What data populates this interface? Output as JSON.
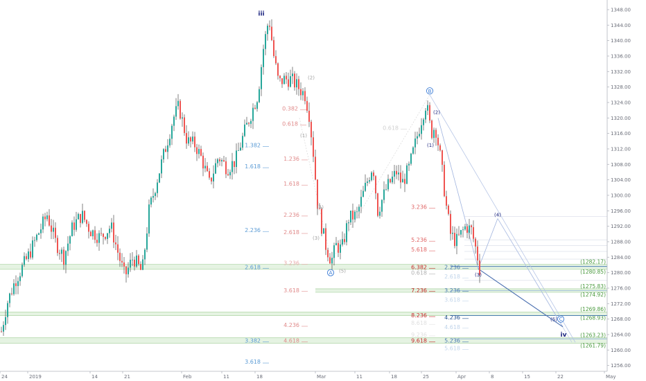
{
  "chart_data": {
    "type": "candlestick",
    "y_axis": {
      "ylim": [
        1254.5,
        1350.5
      ],
      "ticks": [
        1256,
        1260,
        1264,
        1268,
        1272,
        1276,
        1280,
        1284,
        1288,
        1292,
        1296,
        1300,
        1304,
        1308,
        1312,
        1316,
        1320,
        1324,
        1328,
        1332,
        1336,
        1340,
        1344,
        1348
      ],
      "labels": [
        "1256.00",
        "1260.00",
        "1264.00",
        "1268.00",
        "1272.00",
        "1276.00",
        "1280.00",
        "1284.00",
        "1288.00",
        "1292.00",
        "1296.00",
        "1300.00",
        "1304.00",
        "1308.00",
        "1312.00",
        "1316.00",
        "1320.00",
        "1324.00",
        "1328.00",
        "1332.00",
        "1336.00",
        "1340.00",
        "1344.00",
        "1348.00"
      ],
      "position": "right"
    },
    "x_axis": {
      "ticks": [
        {
          "label": "24",
          "t": 0
        },
        {
          "label": "2019",
          "t": 40
        },
        {
          "label": "14",
          "t": 130
        },
        {
          "label": "21",
          "t": 177
        },
        {
          "label": "Feb",
          "t": 262
        },
        {
          "label": "11",
          "t": 320
        },
        {
          "label": "18",
          "t": 368
        },
        {
          "label": "Mar",
          "t": 455
        },
        {
          "label": "11",
          "t": 512
        },
        {
          "label": "18",
          "t": 562
        },
        {
          "label": "25",
          "t": 608
        },
        {
          "label": "Apr",
          "t": 658
        },
        {
          "label": "8",
          "t": 706
        },
        {
          "label": "15",
          "t": 754
        },
        {
          "label": "22",
          "t": 802
        },
        {
          "label": "May",
          "t": 872
        }
      ]
    },
    "path_points": [
      [
        0,
        1263
      ],
      [
        10,
        1272
      ],
      [
        22,
        1278
      ],
      [
        40,
        1284
      ],
      [
        55,
        1290
      ],
      [
        68,
        1295
      ],
      [
        80,
        1288
      ],
      [
        92,
        1284
      ],
      [
        105,
        1292
      ],
      [
        118,
        1295
      ],
      [
        130,
        1291
      ],
      [
        145,
        1289
      ],
      [
        160,
        1292
      ],
      [
        172,
        1284
      ],
      [
        180,
        1279
      ],
      [
        192,
        1284
      ],
      [
        205,
        1280
      ],
      [
        215,
        1296
      ],
      [
        228,
        1305
      ],
      [
        240,
        1313
      ],
      [
        250,
        1320
      ],
      [
        258,
        1323
      ],
      [
        270,
        1314
      ],
      [
        282,
        1313
      ],
      [
        292,
        1309
      ],
      [
        302,
        1303
      ],
      [
        315,
        1310
      ],
      [
        328,
        1307
      ],
      [
        340,
        1309
      ],
      [
        352,
        1316
      ],
      [
        362,
        1321
      ],
      [
        372,
        1326
      ],
      [
        380,
        1338
      ],
      [
        388,
        1346
      ],
      [
        395,
        1336
      ],
      [
        402,
        1329
      ],
      [
        410,
        1330
      ],
      [
        420,
        1330
      ],
      [
        430,
        1328
      ],
      [
        440,
        1326
      ],
      [
        446,
        1321
      ],
      [
        452,
        1311
      ],
      [
        458,
        1298
      ],
      [
        464,
        1292
      ],
      [
        470,
        1287
      ],
      [
        478,
        1283
      ],
      [
        485,
        1287
      ],
      [
        493,
        1286
      ],
      [
        503,
        1294
      ],
      [
        515,
        1295
      ],
      [
        525,
        1301
      ],
      [
        538,
        1308
      ],
      [
        545,
        1296
      ],
      [
        558,
        1302
      ],
      [
        572,
        1306
      ],
      [
        580,
        1303
      ],
      [
        590,
        1307
      ],
      [
        600,
        1314
      ],
      [
        610,
        1321
      ],
      [
        615,
        1324
      ],
      [
        622,
        1316
      ],
      [
        628,
        1318
      ],
      [
        636,
        1309
      ],
      [
        644,
        1297
      ],
      [
        650,
        1290
      ],
      [
        658,
        1288
      ],
      [
        665,
        1290
      ],
      [
        672,
        1292
      ],
      [
        680,
        1291
      ],
      [
        688,
        1285
      ],
      [
        692,
        1281
      ]
    ],
    "support_zones": [
      {
        "top": 1282.17,
        "bottom": 1280.85,
        "label_top": "(1282.17)",
        "label_bottom": "(1280.85)"
      },
      {
        "top": 1275.83,
        "bottom": 1274.92,
        "label_top": "(1275.83)",
        "label_bottom": "(1274.92)"
      },
      {
        "top": 1269.86,
        "bottom": 1268.93,
        "label_top": "(1269.86)",
        "label_bottom": "(1268.93)"
      },
      {
        "top": 1263.23,
        "bottom": 1261.79,
        "label_top": "(1263.23)",
        "label_bottom": "(1261.79)"
      }
    ],
    "wave_labels": [
      {
        "text": "iii",
        "t": 377,
        "y": 1346.5,
        "style": "big"
      },
      {
        "text": "(2)",
        "t": 449,
        "y": 1330,
        "style": "grey"
      },
      {
        "text": "(1)",
        "t": 438,
        "y": 1315,
        "style": "grey"
      },
      {
        "text": "(3)",
        "t": 456,
        "y": 1288.5,
        "style": "grey"
      },
      {
        "text": "(4)",
        "t": 462,
        "y": 1296.5,
        "style": "grey"
      },
      {
        "text": "(5)",
        "t": 494,
        "y": 1280,
        "style": "grey"
      },
      {
        "text": "(2)",
        "t": 630,
        "y": 1321,
        "style": "dark"
      },
      {
        "text": "(1)",
        "t": 621,
        "y": 1312.5,
        "style": "dark"
      },
      {
        "text": "(3)",
        "t": 690,
        "y": 1279,
        "style": "dark"
      },
      {
        "text": "(4)",
        "t": 718,
        "y": 1294.5,
        "style": "dark"
      },
      {
        "text": "(5)",
        "t": 799,
        "y": 1267.5,
        "style": "dark"
      },
      {
        "text": "iv",
        "t": 813,
        "y": 1263.5,
        "style": "big"
      }
    ],
    "circle_labels": [
      {
        "text": "A",
        "t": 477,
        "y": 1280
      },
      {
        "text": "B",
        "t": 620,
        "y": 1327
      },
      {
        "text": "C",
        "t": 809,
        "y": 1268
      }
    ],
    "fib_labels": [
      {
        "text": "1.382",
        "t": 378,
        "y": 1313,
        "color": "#5b9bd5"
      },
      {
        "text": "1.618",
        "t": 378,
        "y": 1307.5,
        "color": "#5b9bd5"
      },
      {
        "text": "2.236",
        "t": 378,
        "y": 1291,
        "color": "#5b9bd5"
      },
      {
        "text": "2.618",
        "t": 378,
        "y": 1281.5,
        "color": "#5b9bd5"
      },
      {
        "text": "3.382",
        "t": 378,
        "y": 1262.5,
        "color": "#5b9bd5"
      },
      {
        "text": "3.618",
        "t": 378,
        "y": 1257,
        "color": "#5b9bd5"
      },
      {
        "text": "0.382",
        "t": 432,
        "y": 1322.5,
        "color": "#e08a8a"
      },
      {
        "text": "0.618",
        "t": 432,
        "y": 1318.5,
        "color": "#e08a8a"
      },
      {
        "text": "1.236",
        "t": 434,
        "y": 1309.5,
        "color": "#e08a8a"
      },
      {
        "text": "1.618",
        "t": 434,
        "y": 1303,
        "color": "#e08a8a"
      },
      {
        "text": "2.236",
        "t": 434,
        "y": 1295,
        "color": "#e08a8a"
      },
      {
        "text": "2.618",
        "t": 434,
        "y": 1290.5,
        "color": "#e08a8a"
      },
      {
        "text": "3.236",
        "t": 434,
        "y": 1282.5,
        "color": "#e8a8a8"
      },
      {
        "text": "3.618",
        "t": 434,
        "y": 1275.5,
        "color": "#e08a8a"
      },
      {
        "text": "4.236",
        "t": 434,
        "y": 1266.5,
        "color": "#e08a8a"
      },
      {
        "text": "4.618",
        "t": 434,
        "y": 1262.5,
        "color": "#e08a8a"
      },
      {
        "text": "0.618",
        "t": 577,
        "y": 1317.5,
        "color": "#d0d0d0"
      },
      {
        "text": "3.236",
        "t": 618,
        "y": 1297,
        "color": "#e06666"
      },
      {
        "text": "5.236",
        "t": 618,
        "y": 1288.5,
        "color": "#e06666"
      },
      {
        "text": "5.618",
        "t": 618,
        "y": 1286,
        "color": "#e06666"
      },
      {
        "text": "6.382",
        "t": 618,
        "y": 1281.5,
        "color": "#c62828"
      },
      {
        "text": "7.236",
        "t": 618,
        "y": 1275.5,
        "color": "#c62828"
      },
      {
        "text": "8.236",
        "t": 618,
        "y": 1269,
        "color": "#c62828"
      },
      {
        "text": "9.618",
        "t": 618,
        "y": 1262.5,
        "color": "#c62828"
      },
      {
        "text": "0.618",
        "t": 618,
        "y": 1280,
        "color": "#b0b0b0"
      },
      {
        "text": "8.618",
        "t": 618,
        "y": 1267,
        "color": "#e0e0e0"
      },
      {
        "text": "9.236",
        "t": 618,
        "y": 1264,
        "color": "#e0e0e0"
      },
      {
        "text": "2.236",
        "t": 666,
        "y": 1281.5,
        "color": "#4a7ab5"
      },
      {
        "text": "2.618",
        "t": 666,
        "y": 1279,
        "color": "#c0d4ea"
      },
      {
        "text": "3.236",
        "t": 666,
        "y": 1275.5,
        "color": "#4a7ab5"
      },
      {
        "text": "3.618",
        "t": 666,
        "y": 1273,
        "color": "#c0d4ea"
      },
      {
        "text": "4.236",
        "t": 666,
        "y": 1268.5,
        "color": "#1f4e8c"
      },
      {
        "text": "4.618",
        "t": 666,
        "y": 1266,
        "color": "#c0d4ea"
      },
      {
        "text": "5.236",
        "t": 666,
        "y": 1262.5,
        "color": "#4a7ab5"
      },
      {
        "text": "5.618",
        "t": 666,
        "y": 1260.5,
        "color": "#c0d4ea"
      }
    ]
  }
}
